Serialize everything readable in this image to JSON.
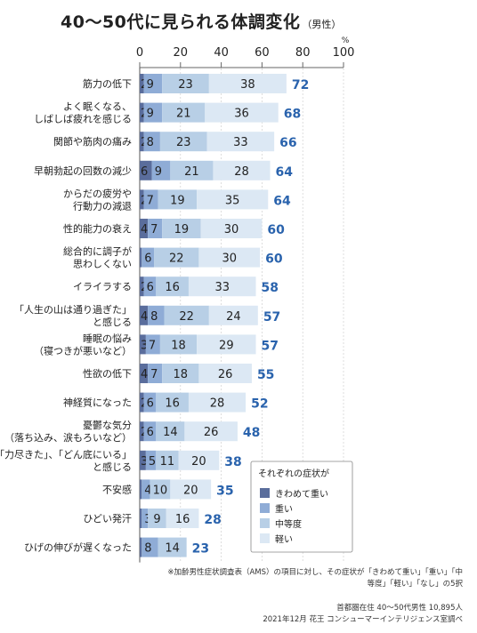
{
  "title": "40〜50代に見られる体調変化",
  "subtitle": "（男性）",
  "chart_data": {
    "type": "bar",
    "stacked": true,
    "axis_unit": "%",
    "xlim": [
      0,
      100
    ],
    "x_ticks": [
      "0",
      "20",
      "40",
      "60",
      "80",
      "100"
    ],
    "categories": [
      [
        "筋力の低下"
      ],
      [
        "よく眠くなる、",
        "しばしば疲れを感じる"
      ],
      [
        "関節や筋肉の痛み"
      ],
      [
        "早朝勃起の回数の減少"
      ],
      [
        "からだの疲労や",
        "行動力の減退"
      ],
      [
        "性的能力の衰え"
      ],
      [
        "総合的に調子が",
        "思わしくない"
      ],
      [
        "イライラする"
      ],
      [
        "「人生の山は通り過ぎた」",
        "と感じる"
      ],
      [
        "睡眠の悩み",
        "（寝つきが悪いなど）"
      ],
      [
        "性欲の低下"
      ],
      [
        "神経質になった"
      ],
      [
        "憂鬱な気分",
        "（落ち込み、涙もろいなど）"
      ],
      [
        "「力尽きた」、「どん底にいる」",
        "と感じる"
      ],
      [
        "不安感"
      ],
      [
        "ひどい発汗"
      ],
      [
        "ひげの伸びが遅くなった"
      ]
    ],
    "series": [
      {
        "name": "きわめて重い",
        "color": "#5a6d9c",
        "values": [
          2,
          2,
          2,
          6,
          2,
          4,
          1,
          2,
          4,
          3,
          4,
          2,
          2,
          3,
          1,
          1,
          1
        ]
      },
      {
        "name": "重い",
        "color": "#8facd6",
        "values": [
          9,
          9,
          8,
          9,
          7,
          7,
          6,
          6,
          8,
          7,
          7,
          6,
          6,
          5,
          4,
          3,
          8
        ]
      },
      {
        "name": "中等度",
        "color": "#b8cfe6",
        "values": [
          23,
          21,
          23,
          21,
          19,
          19,
          22,
          16,
          22,
          18,
          18,
          16,
          14,
          11,
          10,
          9,
          14
        ]
      },
      {
        "name": "軽い",
        "color": "#dce8f4",
        "values": [
          38,
          36,
          33,
          28,
          35,
          30,
          30,
          33,
          24,
          29,
          26,
          28,
          26,
          20,
          20,
          16,
          0
        ]
      }
    ],
    "totals": [
      72,
      68,
      66,
      64,
      64,
      60,
      60,
      58,
      57,
      57,
      55,
      52,
      48,
      38,
      35,
      28,
      23
    ],
    "legend": {
      "title": "それぞれの症状が",
      "position": "bottom-right"
    },
    "total_label_color": "#2a63ad"
  },
  "footnote": "※加齢男性症状調査表（AMS）の項目に対し、その症状が「きわめて重い」「重い」「中等度」「軽い」「なし」の5択",
  "source": {
    "sample": "首都圏在住 40〜50代男性 10,895人",
    "credit": "2021年12月 花王 コンシューマーインテリジェンス室調べ"
  }
}
